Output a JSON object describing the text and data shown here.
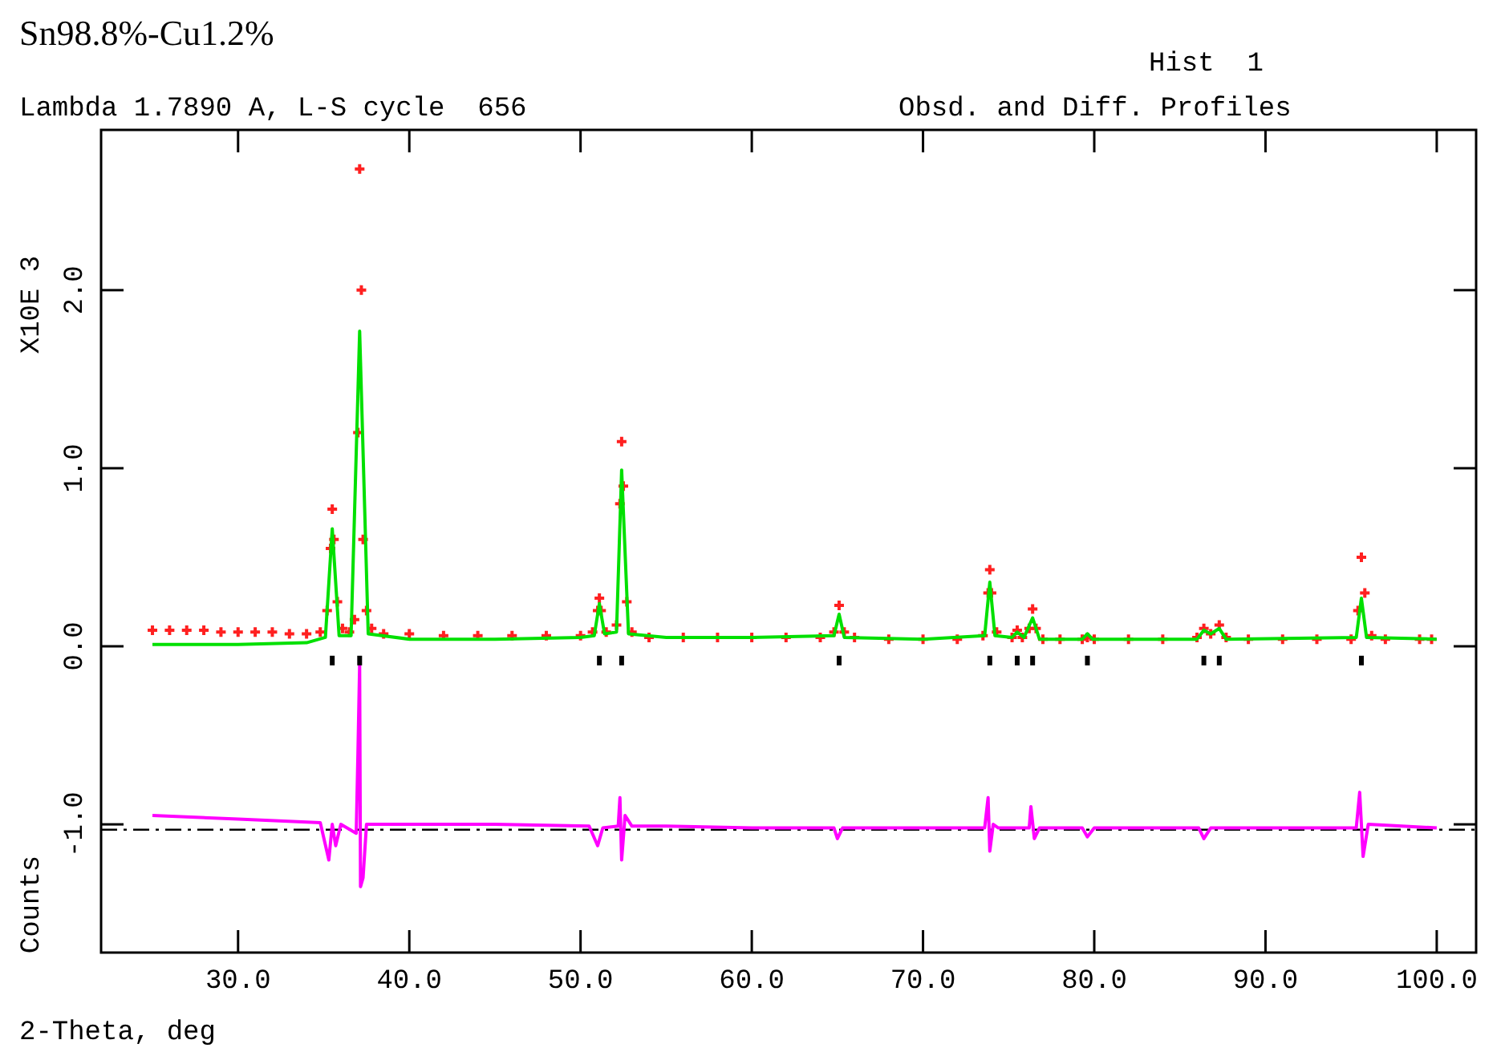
{
  "chart_data": {
    "type": "scatter",
    "title": "Sn98.8%-Cu1.2%",
    "subtitle": "Lambda 1.7890 A, L-S cycle  656",
    "xlabel": "2-Theta, deg",
    "ylabel": "Counts",
    "annotations": [
      "X10E 3",
      "Hist  1",
      "Obsd. and Diff. Profiles"
    ],
    "xlim": [
      22,
      102.3
    ],
    "ylim": [
      -1.72,
      2.9
    ],
    "xticks": [
      {
        "value": 30,
        "label": "30.0"
      },
      {
        "value": 40,
        "label": "40.0"
      },
      {
        "value": 50,
        "label": "50.0"
      },
      {
        "value": 60,
        "label": "60.0"
      },
      {
        "value": 70,
        "label": "70.0"
      },
      {
        "value": 80,
        "label": "80.0"
      },
      {
        "value": 90,
        "label": "90.0"
      },
      {
        "value": 100,
        "label": "100.0"
      }
    ],
    "yticks": [
      {
        "value": -1,
        "label": "-1.0"
      },
      {
        "value": 0,
        "label": "0.0"
      },
      {
        "value": 1,
        "label": "1.0"
      },
      {
        "value": 2,
        "label": "2.0"
      }
    ],
    "grid": false,
    "ref_lines": [
      {
        "axis": "y",
        "value": -1.03,
        "color": "#000000",
        "line_style": "dashed"
      }
    ],
    "series": [
      {
        "type": "line",
        "color": "#ff00ff",
        "x": [
          25,
          30,
          34.8,
          35.3,
          35.5,
          35.7,
          36,
          36.9,
          37,
          37.1,
          37.15,
          37.3,
          37.5,
          40,
          45,
          50.5,
          51,
          51.3,
          52.2,
          52.3,
          52.4,
          52.6,
          53,
          55,
          60,
          64.8,
          65,
          65.3,
          70,
          73.6,
          73.8,
          73.9,
          74.1,
          74.4,
          76.2,
          76.3,
          76.5,
          76.8,
          79.3,
          79.6,
          80,
          86.1,
          86.4,
          86.8,
          90,
          95.3,
          95.5,
          95.7,
          96,
          100
        ],
        "values": [
          -0.95,
          -0.97,
          -0.99,
          -1.2,
          -1,
          -1.12,
          -1,
          -1.05,
          -0.6,
          -0.1,
          -1.35,
          -1.3,
          -1,
          -1,
          -1,
          -1.01,
          -1.12,
          -1.02,
          -1.01,
          -0.85,
          -1.2,
          -0.95,
          -1.01,
          -1.01,
          -1.02,
          -1.02,
          -1.08,
          -1.02,
          -1.02,
          -1.02,
          -0.85,
          -1.15,
          -1,
          -1.02,
          -1.02,
          -0.9,
          -1.08,
          -1.02,
          -1.02,
          -1.07,
          -1.02,
          -1.02,
          -1.08,
          -1.02,
          -1.02,
          -1.02,
          -0.82,
          -1.18,
          -1,
          -1.02
        ]
      },
      {
        "marker": "cross",
        "color": "#ff2020",
        "x": [
          25,
          26,
          27,
          28,
          29,
          30,
          31,
          32,
          33,
          34,
          34.8,
          35.2,
          35.4,
          35.5,
          35.6,
          35.8,
          36.1,
          36.5,
          36.8,
          37,
          37.1,
          37.2,
          37.3,
          37.5,
          37.8,
          38.5,
          40,
          42,
          44,
          46,
          48,
          50,
          50.7,
          51,
          51.1,
          51.2,
          51.5,
          52.1,
          52.3,
          52.4,
          52.5,
          52.7,
          53,
          54,
          56,
          58,
          60,
          62,
          64,
          64.8,
          65.1,
          65.4,
          66,
          68,
          70,
          72,
          73.5,
          73.8,
          73.9,
          74,
          74.3,
          75.2,
          75.5,
          75.8,
          76.2,
          76.4,
          76.6,
          77,
          78,
          79.3,
          79.6,
          80,
          82,
          84,
          86,
          86.4,
          86.8,
          87.3,
          87.7,
          89,
          91,
          93,
          95,
          95.4,
          95.6,
          95.8,
          96.2,
          97,
          99,
          99.7
        ],
        "values": [
          0.09,
          0.09,
          0.09,
          0.09,
          0.08,
          0.08,
          0.08,
          0.08,
          0.07,
          0.07,
          0.08,
          0.2,
          0.55,
          0.77,
          0.6,
          0.25,
          0.1,
          0.08,
          0.15,
          1.2,
          2.68,
          2,
          0.6,
          0.2,
          0.1,
          0.07,
          0.07,
          0.06,
          0.06,
          0.06,
          0.06,
          0.06,
          0.08,
          0.2,
          0.27,
          0.2,
          0.08,
          0.12,
          0.8,
          1.15,
          0.9,
          0.25,
          0.08,
          0.05,
          0.05,
          0.05,
          0.05,
          0.05,
          0.05,
          0.08,
          0.23,
          0.08,
          0.05,
          0.04,
          0.04,
          0.04,
          0.06,
          0.3,
          0.43,
          0.3,
          0.08,
          0.05,
          0.09,
          0.05,
          0.1,
          0.21,
          0.1,
          0.04,
          0.04,
          0.04,
          0.05,
          0.04,
          0.04,
          0.04,
          0.05,
          0.1,
          0.07,
          0.12,
          0.05,
          0.04,
          0.04,
          0.04,
          0.04,
          0.2,
          0.5,
          0.3,
          0.06,
          0.04,
          0.04,
          0.04
        ]
      },
      {
        "type": "line",
        "color": "#00e000",
        "x": [
          25,
          30,
          34,
          35.1,
          35.5,
          35.9,
          36.6,
          37.1,
          37.6,
          40,
          45,
          50,
          50.8,
          51.1,
          51.4,
          52.1,
          52.4,
          52.8,
          55,
          60,
          64.8,
          65.1,
          65.4,
          70,
          73.6,
          73.9,
          74.2,
          75.2,
          75.5,
          75.9,
          76.4,
          76.8,
          79.3,
          79.6,
          79.9,
          86,
          86.4,
          86.8,
          87.3,
          87.7,
          95.3,
          95.6,
          95.9,
          100
        ],
        "values": [
          0.01,
          0.01,
          0.02,
          0.05,
          0.66,
          0.06,
          0.06,
          1.77,
          0.07,
          0.04,
          0.04,
          0.05,
          0.06,
          0.24,
          0.07,
          0.08,
          0.99,
          0.07,
          0.05,
          0.05,
          0.06,
          0.18,
          0.05,
          0.04,
          0.06,
          0.36,
          0.06,
          0.05,
          0.08,
          0.05,
          0.16,
          0.04,
          0.04,
          0.07,
          0.04,
          0.04,
          0.09,
          0.07,
          0.1,
          0.04,
          0.05,
          0.27,
          0.05,
          0.04
        ]
      },
      {
        "marker": "square",
        "color": "#000000",
        "x": [
          35.5,
          37.1,
          51.1,
          52.4,
          65.1,
          73.9,
          75.5,
          76.4,
          79.6,
          86.4,
          87.3,
          95.6
        ],
        "values": [
          -0.08,
          -0.08,
          -0.08,
          -0.08,
          -0.08,
          -0.08,
          -0.08,
          -0.08,
          -0.08,
          -0.08,
          -0.08,
          -0.08
        ]
      }
    ]
  }
}
